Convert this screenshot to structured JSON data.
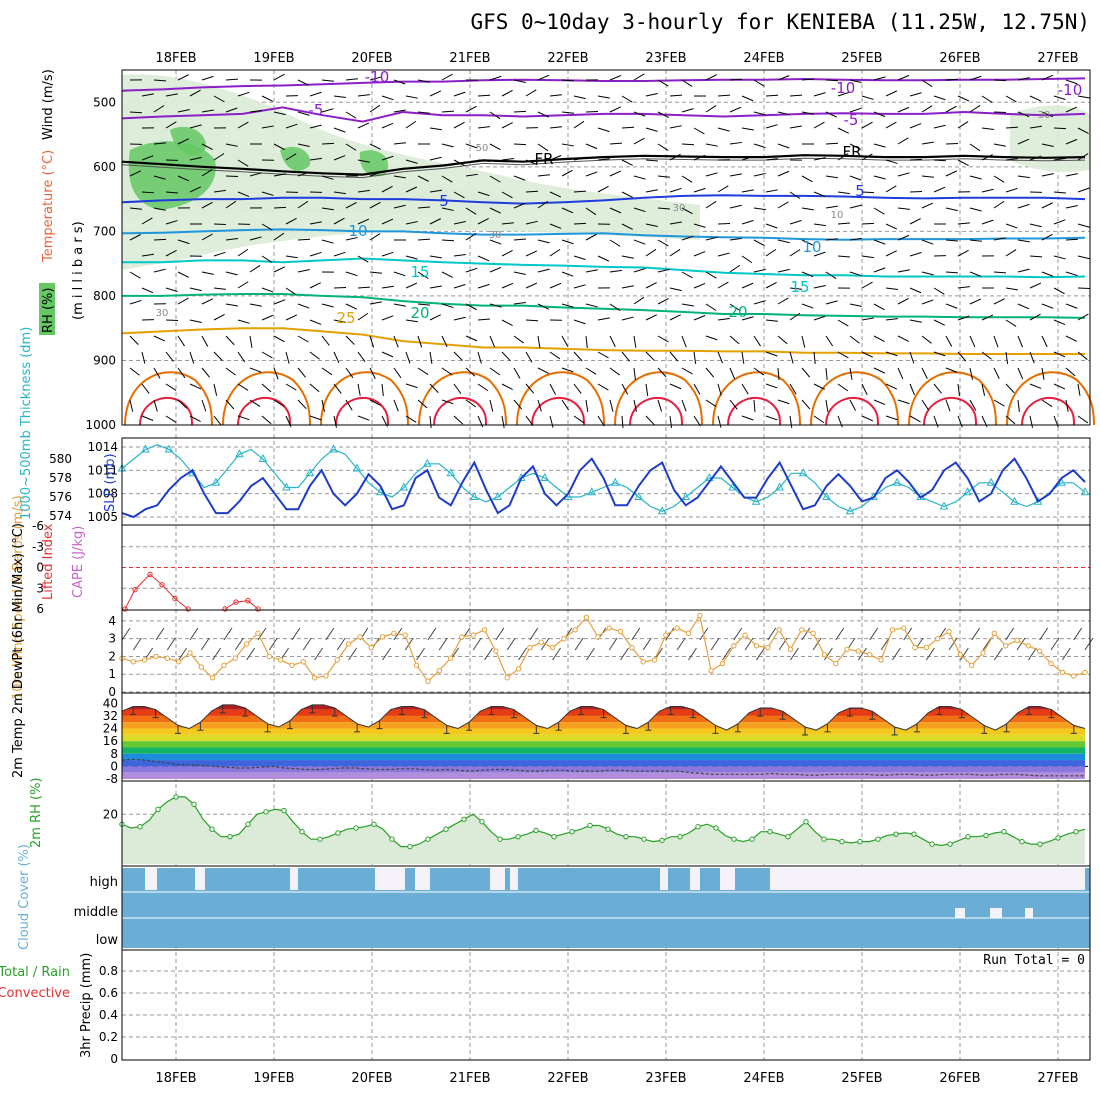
{
  "title": "GFS 0~10day 3-hourly for KENIEBA (11.25W, 12.75N)",
  "colors": {
    "rh_shade": "#64c864",
    "purple": "#8c1ec8",
    "black_fr": "#000000",
    "blue": "#1e3cdc",
    "lightblue": "#1e96dc",
    "teal": "#00c8c8",
    "green_t": "#00b478",
    "orange": "#e6a000",
    "darkorange": "#e66e00",
    "red": "#e61e3c",
    "slp": "#1e3cc8",
    "thickness": "#28b4c8",
    "li": "#e63232",
    "cape": "#c864c8",
    "wind10": "#e6a03c",
    "rh2m": "#28a028",
    "cloud": "#6aaed6",
    "precip_total": "#28a028",
    "precip_conv": "#e63232"
  },
  "chart_data": [
    {
      "id": "upper-air",
      "type": "line",
      "title": "GFS 0~10day 3-hourly for KENIEBA (11.25W, 12.75N)",
      "xticks": [
        "18FEB",
        "19FEB",
        "20FEB",
        "21FEB",
        "22FEB",
        "23FEB",
        "24FEB",
        "25FEB",
        "26FEB",
        "27FEB"
      ],
      "ylabel_parts": {
        "rh": "RH (%)",
        "temp": "Temperature (°C)",
        "wind": "Wind (m/s)",
        "units": "(m i l l i b a r s)"
      },
      "yticks": [
        "500",
        "600",
        "700",
        "800",
        "900",
        "1000"
      ],
      "ylim": [
        1000,
        450
      ],
      "isotherm_labels": [
        "-10",
        "-10",
        "-10",
        "-5",
        "-5",
        "FR",
        "FR",
        "5",
        "5",
        "10",
        "10",
        "15",
        "15",
        "20",
        "20",
        "25"
      ],
      "rh_labels": [
        "30",
        "30",
        "30",
        "50",
        "10",
        "30"
      ],
      "series": [
        {
          "name": "-10",
          "values": [
            482,
            480,
            477,
            475,
            474,
            472,
            470,
            468,
            468,
            466,
            465,
            466,
            467,
            467,
            466,
            465,
            465,
            464,
            465,
            466,
            466,
            465,
            465,
            464,
            463
          ]
        },
        {
          "name": "-5",
          "values": [
            525,
            522,
            520,
            518,
            508,
            520,
            530,
            515,
            520,
            520,
            522,
            520,
            518,
            518,
            520,
            522,
            520,
            518,
            517,
            518,
            518,
            515,
            518,
            520,
            518
          ]
        },
        {
          "name": "FR",
          "values": [
            592,
            596,
            600,
            603,
            607,
            610,
            612,
            603,
            598,
            590,
            592,
            588,
            585,
            583,
            584,
            585,
            585,
            582,
            583,
            585,
            585,
            583,
            585,
            586,
            585
          ]
        },
        {
          "name": "5",
          "values": [
            655,
            652,
            650,
            650,
            648,
            648,
            650,
            650,
            652,
            655,
            657,
            655,
            652,
            648,
            645,
            644,
            645,
            645,
            646,
            648,
            649,
            648,
            648,
            648,
            650
          ]
        },
        {
          "name": "10",
          "values": [
            703,
            702,
            700,
            698,
            697,
            698,
            700,
            700,
            703,
            705,
            705,
            704,
            703,
            706,
            708,
            709,
            710,
            712,
            713,
            712,
            712,
            712,
            711,
            711,
            710
          ]
        },
        {
          "name": "15",
          "values": [
            748,
            748,
            745,
            745,
            748,
            745,
            742,
            745,
            748,
            750,
            752,
            753,
            755,
            756,
            760,
            764,
            766,
            768,
            768,
            770,
            770,
            770,
            770,
            771,
            770
          ]
        },
        {
          "name": "20",
          "values": [
            800,
            800,
            798,
            797,
            797,
            800,
            802,
            808,
            812,
            815,
            815,
            818,
            820,
            822,
            825,
            828,
            828,
            830,
            831,
            832,
            832,
            833,
            833,
            833,
            834
          ]
        },
        {
          "name": "25",
          "values": [
            858,
            855,
            852,
            850,
            850,
            855,
            860,
            870,
            875,
            880,
            880,
            882,
            884,
            885,
            885,
            886,
            886,
            888,
            888,
            889,
            889,
            890,
            890,
            890,
            890
          ]
        }
      ]
    },
    {
      "id": "slp-thickness",
      "type": "line",
      "ylabel_slp": "SLP (mb)",
      "ylabel_thk": "1000~500mb Thickness (dm)",
      "yticks_slp": [
        "1014",
        "1011",
        "1008",
        "1005"
      ],
      "yticks_thk": [
        "580",
        "578",
        "576",
        "574"
      ],
      "series": [
        {
          "name": "SLP",
          "values": [
            1005.5,
            1005,
            1006,
            1006.5,
            1008.5,
            1010,
            1011,
            1008,
            1005.5,
            1005.5,
            1007,
            1009,
            1010,
            1008,
            1006,
            1006,
            1009,
            1011,
            1008,
            1006.5,
            1008,
            1010.5,
            1009,
            1006,
            1006.5,
            1010,
            1011,
            1007.5,
            1006.5,
            1009.5,
            1012,
            1008.5,
            1005.5,
            1006.5,
            1010,
            1011.5,
            1008,
            1006.5,
            1008,
            1011,
            1012.5,
            1010,
            1006.5,
            1006.5,
            1009,
            1011,
            1012,
            1008.5,
            1006.5,
            1007.5,
            1009.5,
            1011.5,
            1009.5,
            1007.5,
            1007.5,
            1010,
            1012,
            1009,
            1006,
            1006.5,
            1009,
            1010.5,
            1009,
            1007,
            1007.5,
            1010,
            1011,
            1009.5,
            1007.5,
            1008.5,
            1011,
            1012,
            1010,
            1007,
            1008,
            1011,
            1012.5,
            1010,
            1007,
            1008,
            1010,
            1011,
            1009.5
          ]
        },
        {
          "name": "Thickness",
          "values": [
            579,
            580,
            581,
            581.5,
            581,
            580,
            578.5,
            577,
            577.5,
            579,
            580.5,
            581,
            580,
            578.5,
            577,
            577,
            578.5,
            580,
            581,
            580.5,
            579,
            577.5,
            576.5,
            576,
            577,
            578.5,
            579.5,
            579.5,
            578.5,
            577,
            576,
            575.5,
            576,
            577,
            578,
            578.5,
            578,
            577,
            576,
            576,
            576.5,
            577,
            577.5,
            577,
            576,
            575,
            574.5,
            575,
            576,
            577,
            578,
            578,
            577,
            576,
            575.5,
            576,
            577,
            578.5,
            578.5,
            577.5,
            576,
            575,
            574.5,
            575,
            576,
            577,
            577.5,
            577,
            576,
            575.5,
            575,
            575.5,
            576.5,
            577.5,
            577.5,
            576.5,
            575.5,
            575,
            575.5,
            576.5,
            577.5,
            577.5,
            576.5
          ]
        }
      ]
    },
    {
      "id": "lifted-index",
      "type": "line",
      "ylabel_li": "Lifted Index",
      "ylabel_cape": "CAPE (J/kg)",
      "yticks": [
        "-6",
        "-3",
        "0",
        "3",
        "6"
      ],
      "ylim": [
        -6,
        6
      ],
      "series": [
        {
          "name": "Lifted Index",
          "values": [
            6,
            3.2,
            1,
            2.5,
            4.5,
            6
          ]
        },
        {
          "name": "Lifted Index 2",
          "values": [
            6,
            5,
            4.8,
            6
          ]
        }
      ]
    },
    {
      "id": "wind10m",
      "type": "line",
      "ylabel": "10m Wind Speed & Barbs (m/s)",
      "yticks": [
        "0",
        "1",
        "2",
        "3",
        "4"
      ],
      "ylim": [
        0,
        4.5
      ],
      "series": [
        {
          "name": "10m Wind Speed",
          "values": [
            1.9,
            1.7,
            1.8,
            2,
            1.9,
            1.7,
            2.2,
            1.4,
            0.8,
            1.5,
            1.9,
            2.7,
            3.3,
            2,
            1.8,
            1.5,
            1.7,
            0.8,
            0.9,
            1.8,
            2.7,
            3.1,
            2.5,
            3.1,
            3.3,
            3.2,
            1.5,
            0.6,
            1.2,
            1.9,
            3.1,
            3.2,
            3.5,
            2.3,
            0.8,
            1.3,
            2.5,
            2.8,
            2.5,
            3,
            3.5,
            4.2,
            3.1,
            3.6,
            3.4,
            2.5,
            1.7,
            1.8,
            3.2,
            3.6,
            3.3,
            4.3,
            1.2,
            1.6,
            2.6,
            3.2,
            2.6,
            2.5,
            3.5,
            2.4,
            3.5,
            3.3,
            2.1,
            1.6,
            2.4,
            2.3,
            2.1,
            1.8,
            3.5,
            3.6,
            2.5,
            2.5,
            3,
            3.4,
            2.1,
            1.5,
            2.2,
            3.3,
            2.6,
            2.9,
            2.6,
            2.3,
            1.6,
            1.1,
            0.9,
            1.1
          ]
        }
      ]
    },
    {
      "id": "t2m",
      "type": "area",
      "ylabel": "2m Temp 2m DewPt (6hr Min/Max) (°C)",
      "yticks": [
        "40",
        "32",
        "24",
        "16",
        "8",
        "0",
        "-8"
      ],
      "ylim": [
        -8,
        44
      ],
      "series": [
        {
          "name": "2m Temp",
          "values": [
            35,
            38,
            38,
            36,
            31,
            26,
            24,
            28,
            35,
            39,
            39,
            37,
            32,
            27,
            25,
            29,
            36,
            39,
            39,
            37,
            32,
            27,
            25,
            29,
            36,
            38,
            38,
            36,
            31,
            26,
            24,
            28,
            35,
            38,
            38,
            36,
            31,
            26,
            24,
            28,
            35,
            38,
            38,
            36,
            31,
            26,
            24,
            28,
            35,
            38,
            38,
            36,
            31,
            26,
            23,
            27,
            34,
            37,
            37,
            35,
            30,
            25,
            23,
            27,
            34,
            37,
            37,
            35,
            30,
            25,
            23,
            27,
            34,
            38,
            38,
            36,
            31,
            26,
            23,
            27,
            34,
            38,
            38,
            36,
            31,
            26,
            24
          ]
        },
        {
          "name": "2m DewPt",
          "values": [
            4,
            4.5,
            4,
            3,
            2,
            1,
            1,
            0.5,
            0,
            -0.5,
            -1,
            -1,
            -0.5,
            0,
            -1,
            -1.5,
            -2,
            -2,
            -1.5,
            -1,
            -1,
            -1.5,
            -2,
            -2,
            -1.5,
            -1.5,
            -2,
            -2.5,
            -2,
            -2.5,
            -3,
            -2.5,
            -2,
            -2,
            -2.5,
            -3,
            -3,
            -2.5,
            -2.5,
            -3,
            -3,
            -3,
            -2.5,
            -2.5,
            -3,
            -3,
            -3,
            -3,
            -3,
            -4,
            -4.5,
            -5,
            -5,
            -5,
            -5,
            -5,
            -4.5,
            -5,
            -5,
            -5.5,
            -5.5,
            -5,
            -5,
            -5,
            -5,
            -5.5,
            -5.5,
            -5,
            -5,
            -5.5,
            -5.5,
            -5,
            -5,
            -5,
            -5.5,
            -5.5,
            -5,
            -5,
            -5.5,
            -6,
            -6,
            -6,
            -6,
            -6
          ]
        }
      ]
    },
    {
      "id": "rh2m",
      "type": "area",
      "ylabel": "2m RH (%)",
      "yticks": [
        "20"
      ],
      "ylim": [
        0,
        33
      ],
      "series": [
        {
          "name": "2m RH",
          "values": [
            16,
            14.5,
            15,
            17.5,
            22,
            25,
            27,
            27,
            24,
            18,
            14,
            11,
            11,
            12,
            16,
            20,
            21,
            22,
            21.5,
            17,
            13,
            10,
            10,
            11,
            12.5,
            14,
            14.5,
            15,
            16,
            14,
            10,
            7,
            7,
            8,
            10,
            12,
            14,
            16,
            18,
            20,
            17,
            13,
            10,
            10,
            11,
            12,
            13.5,
            12.5,
            11,
            12,
            13,
            14,
            15.5,
            15.5,
            14,
            12,
            11,
            11,
            10,
            9,
            9.5,
            11,
            11,
            12.5,
            15,
            16,
            14.5,
            11.5,
            10,
            9,
            10,
            13,
            13,
            12,
            11,
            14,
            17,
            13,
            10,
            10,
            9,
            8.5,
            9,
            9,
            10,
            11.5,
            12,
            12.5,
            12,
            10,
            8,
            7.5,
            8,
            9.5,
            11,
            11,
            11.5,
            12.5,
            13,
            11,
            9,
            8,
            8,
            9,
            10.5,
            12,
            13,
            14
          ]
        }
      ]
    },
    {
      "id": "cloud-cover",
      "type": "area",
      "ylabel": "Cloud Cover (%)",
      "level_labels": [
        "high",
        "middle",
        "low"
      ]
    },
    {
      "id": "precip",
      "type": "bar",
      "ylabel": "3hr Precip (mm)",
      "ylabel_total": "Total / Rain",
      "ylabel_conv": "Convective",
      "yticks": [
        "0",
        "0.2",
        "0.4",
        "0.6",
        "0.8"
      ],
      "ylim": [
        0,
        1
      ],
      "run_total": "Run Total = 0",
      "values": [],
      "xticks": [
        "18FEB",
        "19FEB",
        "20FEB",
        "21FEB",
        "22FEB",
        "23FEB",
        "24FEB",
        "25FEB",
        "26FEB",
        "27FEB"
      ]
    }
  ]
}
